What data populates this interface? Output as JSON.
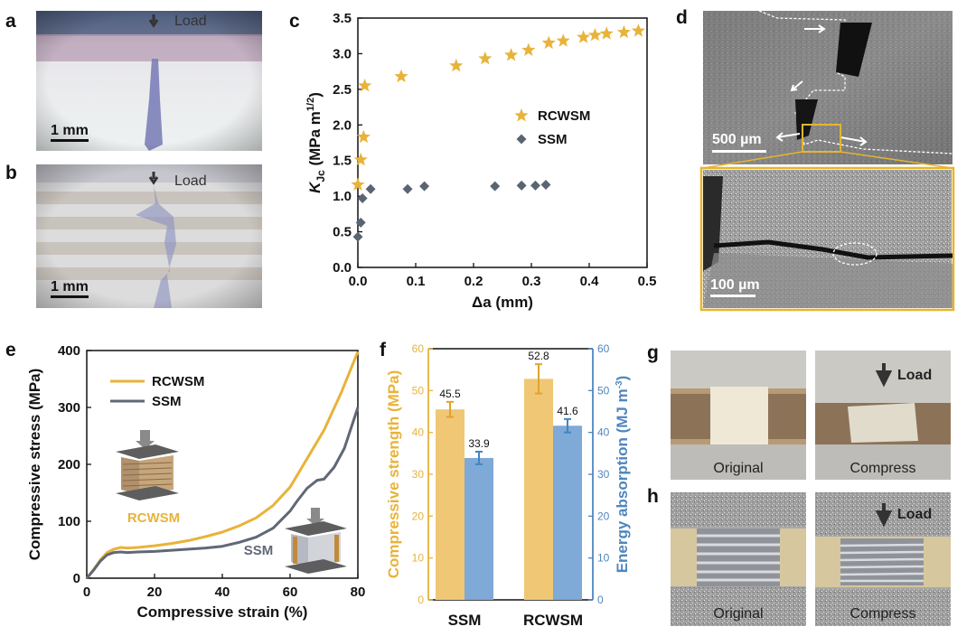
{
  "panels": {
    "a": {
      "label": "a",
      "load_text": "Load",
      "scale_text": "1 mm"
    },
    "b": {
      "label": "b",
      "load_text": "Load",
      "scale_text": "1 mm"
    },
    "d": {
      "label": "d",
      "scale_top": "500 µm",
      "scale_bottom": "100 µm"
    },
    "g": {
      "label": "g",
      "load_text": "Load",
      "left_caption": "Original",
      "right_caption": "Compress"
    },
    "h": {
      "label": "h",
      "load_text": "Load",
      "left_caption": "Original",
      "right_caption": "Compress"
    }
  },
  "chart_data": [
    {
      "panel": "c",
      "type": "scatter",
      "xlabel": "Δa (mm)",
      "ylabel_main": "K",
      "ylabel_sub": "Jc",
      "ylabel_unit": "(MPa m",
      "ylabel_exp": "1/2",
      "ylabel_close": ")",
      "xlim": [
        0.0,
        0.5
      ],
      "ylim": [
        0.0,
        3.5
      ],
      "xticks": [
        "0.0",
        "0.1",
        "0.2",
        "0.3",
        "0.4",
        "0.5"
      ],
      "yticks": [
        "0.0",
        "0.5",
        "1.0",
        "1.5",
        "2.0",
        "2.5",
        "3.0",
        "3.5"
      ],
      "legend_position": "center-right",
      "series": [
        {
          "name": "RCWSM",
          "color": "#e8b33a",
          "marker": "star",
          "x": [
            0.0,
            0.005,
            0.01,
            0.012,
            0.075,
            0.17,
            0.22,
            0.265,
            0.295,
            0.33,
            0.355,
            0.39,
            0.41,
            0.43,
            0.46,
            0.485
          ],
          "y": [
            1.16,
            1.51,
            1.83,
            2.55,
            2.68,
            2.83,
            2.93,
            2.98,
            3.05,
            3.15,
            3.18,
            3.23,
            3.26,
            3.28,
            3.3,
            3.32
          ]
        },
        {
          "name": "SSM",
          "color": "#5a6473",
          "marker": "diamond",
          "x": [
            0.0,
            0.005,
            0.008,
            0.022,
            0.086,
            0.115,
            0.237,
            0.283,
            0.307,
            0.325
          ],
          "y": [
            0.43,
            0.63,
            0.97,
            1.1,
            1.1,
            1.14,
            1.14,
            1.15,
            1.15,
            1.16
          ]
        }
      ]
    },
    {
      "panel": "e",
      "type": "line",
      "xlabel": "Compressive strain (%)",
      "ylabel": "Compressive stress (MPa)",
      "xlim": [
        0,
        80
      ],
      "ylim": [
        0,
        400
      ],
      "xticks": [
        "0",
        "20",
        "40",
        "60",
        "80"
      ],
      "yticks": [
        "0",
        "100",
        "200",
        "300",
        "400"
      ],
      "legend_position": "top-left",
      "inset_labels": [
        "RCWSM",
        "SSM"
      ],
      "series": [
        {
          "name": "RCWSM",
          "color": "#e8b33a",
          "x": [
            0,
            2,
            4,
            6,
            8,
            10,
            12,
            15,
            20,
            25,
            30,
            35,
            40,
            45,
            50,
            55,
            60,
            65,
            70,
            75,
            80
          ],
          "y": [
            0,
            15,
            32,
            45,
            51,
            54,
            53,
            54,
            57,
            61,
            66,
            73,
            81,
            92,
            106,
            128,
            160,
            210,
            260,
            325,
            398
          ]
        },
        {
          "name": "SSM",
          "color": "#606876",
          "x": [
            0,
            2,
            4,
            6,
            8,
            10,
            12,
            15,
            20,
            25,
            30,
            35,
            40,
            45,
            50,
            55,
            60,
            62,
            65,
            68,
            70,
            73,
            76,
            80
          ],
          "y": [
            0,
            14,
            30,
            41,
            45,
            46,
            45,
            46,
            47,
            49,
            51,
            53,
            56,
            63,
            72,
            88,
            118,
            135,
            158,
            172,
            174,
            195,
            228,
            300
          ]
        }
      ]
    },
    {
      "panel": "f",
      "type": "bar",
      "categories": [
        "SSM",
        "RCWSM"
      ],
      "ylabel_left": "Compressive strength (MPa)",
      "ylabel_right": "Energy absorption (MJ m",
      "ylabel_right_exp": "-3",
      "ylabel_right_close": ")",
      "ylim_left": [
        0,
        60
      ],
      "ylim_right": [
        0,
        60
      ],
      "yticks": [
        "0",
        "10",
        "20",
        "30",
        "40",
        "50",
        "60"
      ],
      "series": [
        {
          "name": "Compressive strength",
          "color": "#f0c774",
          "axis": "left",
          "values": [
            45.5,
            52.8
          ],
          "errors": [
            1.8,
            3.5
          ],
          "value_labels": [
            "45.5",
            "52.8"
          ]
        },
        {
          "name": "Energy absorption",
          "color": "#7fa9d6",
          "axis": "right",
          "values": [
            33.9,
            41.6
          ],
          "errors": [
            1.5,
            1.6
          ],
          "value_labels": [
            "33.9",
            "41.6"
          ]
        }
      ],
      "axis_colors": {
        "left": "#e8b33a",
        "right": "#4f86bf"
      }
    }
  ]
}
